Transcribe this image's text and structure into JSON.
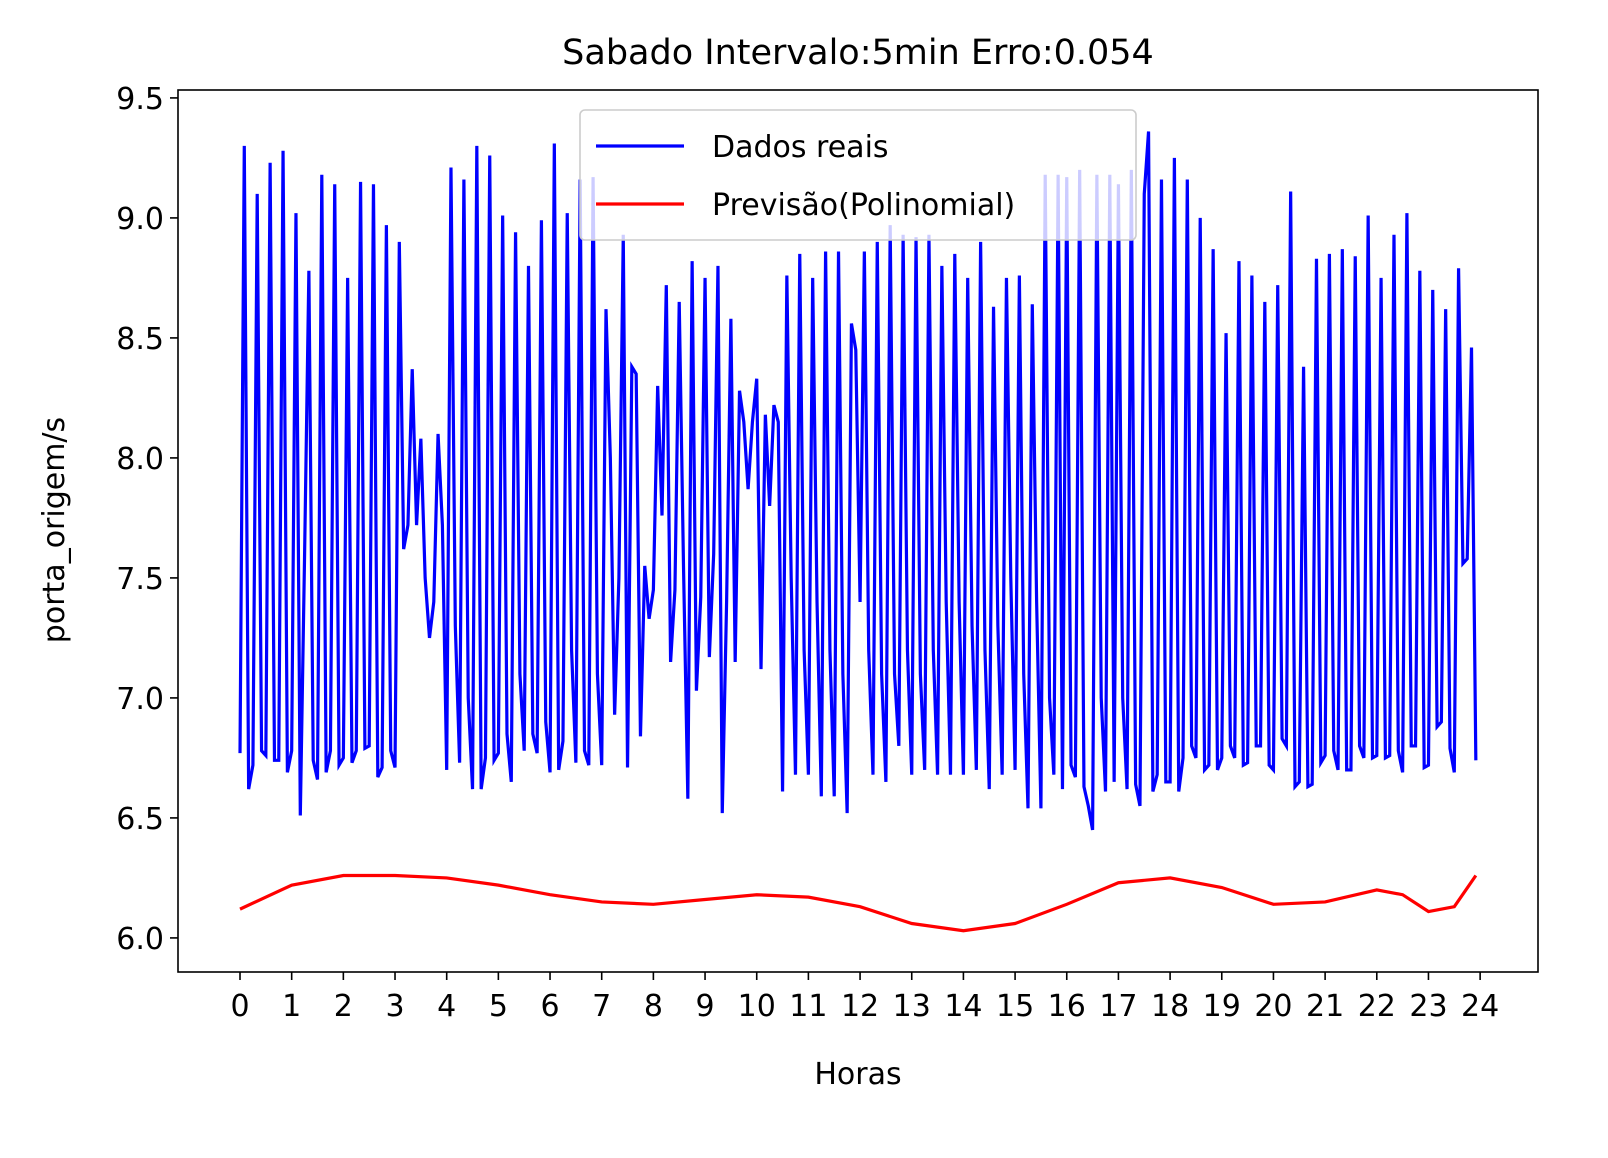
{
  "chart_data": {
    "type": "line",
    "title": "Sabado Intervalo:5min Erro:0.054",
    "x_label": "Horas",
    "y_label": "porta_origem/s",
    "xlim": [
      -1.2,
      25.12
    ],
    "ylim": [
      5.858,
      9.533
    ],
    "xticks": [
      0,
      1,
      2,
      3,
      4,
      5,
      6,
      7,
      8,
      9,
      10,
      11,
      12,
      13,
      14,
      15,
      16,
      17,
      18,
      19,
      20,
      21,
      22,
      23,
      24
    ],
    "yticks": [
      {
        "value": 6,
        "label": "6.0"
      },
      {
        "value": 6.5,
        "label": "6.5"
      },
      {
        "value": 7,
        "label": "7.0"
      },
      {
        "value": 7.5,
        "label": "7.5"
      },
      {
        "value": 8,
        "label": "8.0"
      },
      {
        "value": 8.5,
        "label": "8.5"
      },
      {
        "value": 9,
        "label": "9.0"
      },
      {
        "value": 9.5,
        "label": "9.5"
      }
    ],
    "legend": "upper center",
    "x": [
      0,
      0.083,
      0.167,
      0.25,
      0.333,
      0.417,
      0.5,
      0.583,
      0.667,
      0.75,
      0.833,
      0.917,
      1,
      1.083,
      1.167,
      1.25,
      1.333,
      1.417,
      1.5,
      1.583,
      1.667,
      1.75,
      1.833,
      1.917,
      2,
      2.083,
      2.167,
      2.25,
      2.333,
      2.417,
      2.5,
      2.583,
      2.667,
      2.75,
      2.833,
      2.917,
      3,
      3.083,
      3.167,
      3.25,
      3.333,
      3.417,
      3.5,
      3.583,
      3.667,
      3.75,
      3.833,
      3.917,
      4,
      4.083,
      4.167,
      4.25,
      4.333,
      4.417,
      4.5,
      4.583,
      4.667,
      4.75,
      4.833,
      4.917,
      5,
      5.083,
      5.167,
      5.25,
      5.333,
      5.417,
      5.5,
      5.583,
      5.667,
      5.75,
      5.833,
      5.917,
      6,
      6.083,
      6.167,
      6.25,
      6.333,
      6.417,
      6.5,
      6.583,
      6.667,
      6.75,
      6.833,
      6.917,
      7,
      7.083,
      7.167,
      7.25,
      7.333,
      7.417,
      7.5,
      7.583,
      7.667,
      7.75,
      7.833,
      7.917,
      8,
      8.083,
      8.167,
      8.25,
      8.333,
      8.417,
      8.5,
      8.583,
      8.667,
      8.75,
      8.833,
      8.917,
      9,
      9.083,
      9.167,
      9.25,
      9.333,
      9.417,
      9.5,
      9.583,
      9.667,
      9.75,
      9.833,
      9.917,
      10,
      10.083,
      10.167,
      10.25,
      10.333,
      10.417,
      10.5,
      10.583,
      10.667,
      10.75,
      10.833,
      10.917,
      11,
      11.083,
      11.167,
      11.25,
      11.333,
      11.417,
      11.5,
      11.583,
      11.667,
      11.75,
      11.833,
      11.917,
      12,
      12.083,
      12.167,
      12.25,
      12.333,
      12.417,
      12.5,
      12.583,
      12.667,
      12.75,
      12.833,
      12.917,
      13,
      13.083,
      13.167,
      13.25,
      13.333,
      13.417,
      13.5,
      13.583,
      13.667,
      13.75,
      13.833,
      13.917,
      14,
      14.083,
      14.167,
      14.25,
      14.333,
      14.417,
      14.5,
      14.583,
      14.667,
      14.75,
      14.833,
      14.917,
      15,
      15.083,
      15.167,
      15.25,
      15.333,
      15.417,
      15.5,
      15.583,
      15.667,
      15.75,
      15.833,
      15.917,
      16,
      16.083,
      16.167,
      16.25,
      16.333,
      16.417,
      16.5,
      16.583,
      16.667,
      16.75,
      16.833,
      16.917,
      17,
      17.083,
      17.167,
      17.25,
      17.333,
      17.417,
      17.5,
      17.583,
      17.667,
      17.75,
      17.833,
      17.917,
      18,
      18.083,
      18.167,
      18.25,
      18.333,
      18.417,
      18.5,
      18.583,
      18.667,
      18.75,
      18.833,
      18.917,
      19,
      19.083,
      19.167,
      19.25,
      19.333,
      19.417,
      19.5,
      19.583,
      19.667,
      19.75,
      19.833,
      19.917,
      20,
      20.083,
      20.167,
      20.25,
      20.333,
      20.417,
      20.5,
      20.583,
      20.667,
      20.75,
      20.833,
      20.917,
      21,
      21.083,
      21.167,
      21.25,
      21.333,
      21.417,
      21.5,
      21.583,
      21.667,
      21.75,
      21.833,
      21.917,
      22,
      22.083,
      22.167,
      22.25,
      22.333,
      22.417,
      22.5,
      22.583,
      22.667,
      22.75,
      22.833,
      22.917,
      23,
      23.083,
      23.167,
      23.25,
      23.333,
      23.417,
      23.5,
      23.583,
      23.667,
      23.75,
      23.833,
      23.917
    ],
    "series": [
      {
        "name": "Dados reais",
        "color": "#0000ff",
        "values": [
          6.77,
          9.3,
          6.62,
          6.72,
          9.1,
          6.78,
          6.76,
          9.23,
          6.74,
          6.74,
          9.28,
          6.69,
          6.78,
          9.02,
          6.51,
          7.6,
          8.78,
          6.74,
          6.66,
          9.18,
          6.69,
          6.78,
          9.14,
          6.72,
          6.75,
          8.75,
          6.73,
          6.78,
          9.15,
          6.79,
          6.8,
          9.14,
          6.67,
          6.71,
          8.97,
          6.78,
          6.71,
          8.9,
          7.62,
          7.72,
          8.37,
          7.72,
          8.08,
          7.5,
          7.25,
          7.4,
          8.1,
          7.72,
          6.7,
          9.21,
          7.3,
          6.73,
          9.16,
          7.0,
          6.62,
          9.3,
          6.62,
          6.75,
          9.26,
          6.74,
          6.77,
          9.01,
          6.85,
          6.65,
          8.94,
          7.1,
          6.78,
          8.8,
          6.85,
          6.77,
          8.99,
          6.9,
          6.69,
          9.31,
          6.7,
          6.82,
          9.02,
          7.2,
          6.73,
          9.16,
          6.78,
          6.72,
          9.17,
          7.1,
          6.72,
          8.62,
          8.0,
          6.93,
          7.5,
          8.93,
          6.71,
          8.38,
          8.35,
          6.84,
          7.55,
          7.33,
          7.45,
          8.3,
          7.76,
          8.72,
          7.15,
          7.45,
          8.65,
          7.55,
          6.58,
          8.82,
          7.03,
          7.42,
          8.75,
          7.17,
          7.6,
          8.8,
          6.52,
          7.4,
          8.58,
          7.15,
          8.28,
          8.15,
          7.87,
          8.15,
          8.33,
          7.12,
          8.18,
          7.8,
          8.22,
          8.15,
          6.61,
          8.76,
          7.5,
          6.68,
          8.85,
          7.2,
          6.68,
          8.75,
          7.4,
          6.59,
          8.86,
          7.2,
          6.59,
          8.86,
          7.1,
          6.52,
          8.56,
          8.45,
          7.4,
          8.86,
          7.2,
          6.68,
          8.9,
          7.1,
          6.65,
          8.97,
          7.1,
          6.8,
          8.93,
          7.2,
          6.68,
          8.92,
          7.1,
          6.7,
          8.93,
          7.2,
          6.68,
          8.8,
          7.4,
          6.68,
          8.85,
          7.4,
          6.68,
          8.75,
          7.3,
          6.7,
          8.9,
          7.2,
          6.62,
          8.63,
          7.3,
          6.68,
          8.75,
          7.5,
          6.7,
          8.76,
          7.1,
          6.54,
          8.64,
          7.4,
          6.54,
          9.18,
          7.0,
          6.68,
          9.18,
          6.62,
          9.17,
          6.72,
          6.67,
          9.2,
          6.63,
          6.55,
          6.45,
          9.18,
          7.0,
          6.61,
          9.18,
          6.65,
          9.14,
          7.0,
          6.62,
          9.2,
          6.64,
          6.55,
          9.1,
          9.36,
          6.61,
          6.68,
          9.16,
          6.65,
          6.65,
          9.25,
          6.61,
          6.75,
          9.16,
          6.8,
          6.75,
          9.0,
          6.7,
          6.72,
          8.87,
          6.7,
          6.75,
          8.52,
          6.8,
          6.75,
          8.82,
          6.72,
          6.73,
          8.76,
          6.8,
          6.8,
          8.65,
          6.72,
          6.7,
          8.72,
          6.83,
          6.8,
          9.11,
          6.63,
          6.65,
          8.38,
          6.63,
          6.64,
          8.83,
          6.73,
          6.76,
          8.85,
          6.78,
          6.7,
          8.87,
          6.7,
          6.7,
          8.84,
          6.8,
          6.75,
          9.01,
          6.75,
          6.76,
          8.75,
          6.75,
          6.76,
          8.93,
          6.78,
          6.69,
          9.02,
          6.8,
          6.8,
          8.78,
          6.71,
          6.72,
          8.7,
          6.88,
          6.9,
          8.62,
          6.79,
          6.69,
          8.79,
          7.56,
          7.58,
          8.46,
          6.74
        ]
      },
      {
        "name": "Previsão(Polinomial)",
        "color": "#ff0000",
        "x": [
          0,
          1,
          2,
          3,
          4,
          5,
          6,
          7,
          8,
          9,
          10,
          11,
          12,
          13,
          14,
          15,
          16,
          17,
          18,
          19,
          20,
          21,
          22,
          22.5,
          23,
          23.5,
          23.917
        ],
        "values": [
          6.12,
          6.22,
          6.26,
          6.26,
          6.25,
          6.22,
          6.18,
          6.15,
          6.14,
          6.16,
          6.18,
          6.17,
          6.13,
          6.06,
          6.03,
          6.06,
          6.14,
          6.23,
          6.25,
          6.21,
          6.14,
          6.15,
          6.2,
          6.18,
          6.11,
          6.13,
          6.26
        ]
      }
    ]
  }
}
